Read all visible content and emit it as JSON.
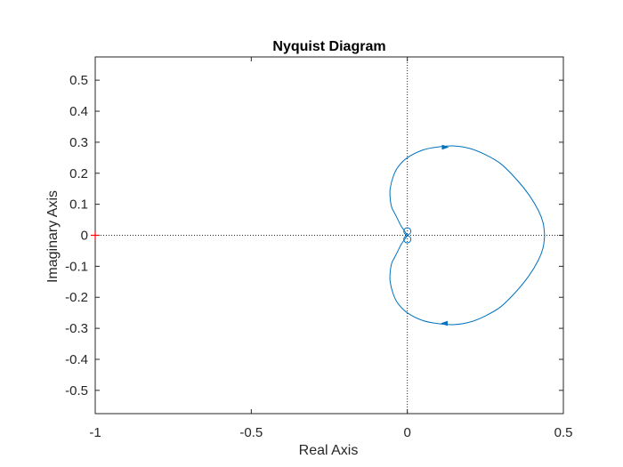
{
  "chart_data": {
    "type": "line",
    "title": "Nyquist Diagram",
    "xlabel": "Real Axis",
    "ylabel": "Imaginary Axis",
    "xlim": [
      -1,
      0.5
    ],
    "ylim": [
      -0.575,
      0.575
    ],
    "xticks": [
      -1,
      -0.5,
      0,
      0.5
    ],
    "xtick_labels": [
      "-1",
      "-0.5",
      "0",
      "0.5"
    ],
    "yticks": [
      -0.5,
      -0.4,
      -0.3,
      -0.2,
      -0.1,
      0,
      0.1,
      0.2,
      0.3,
      0.4,
      0.5
    ],
    "ytick_labels": [
      "-0.5",
      "-0.4",
      "-0.3",
      "-0.2",
      "-0.1",
      "0",
      "0.1",
      "0.2",
      "0.3",
      "0.4",
      "0.5"
    ],
    "grid": false,
    "reference_lines": {
      "x0_dotted": true,
      "y0_dotted": true
    },
    "critical_point": {
      "x": -1,
      "y": 0,
      "marker": "+",
      "color": "#ff0000"
    },
    "series": [
      {
        "color": "#0072bd",
        "x": [
          0.0,
          -0.01,
          -0.02,
          -0.03,
          -0.04,
          -0.05,
          -0.055,
          -0.055,
          -0.045,
          -0.03,
          0.0,
          0.05,
          0.1,
          0.15,
          0.2,
          0.25,
          0.3,
          0.35,
          0.39,
          0.42,
          0.435,
          0.44
        ],
        "y": [
          0.0,
          0.015,
          0.03,
          0.05,
          0.07,
          0.09,
          0.12,
          0.15,
          0.19,
          0.22,
          0.25,
          0.275,
          0.285,
          0.288,
          0.28,
          0.26,
          0.23,
          0.18,
          0.13,
          0.08,
          0.04,
          0.0
        ]
      },
      {
        "color": "#0072bd",
        "x": [
          0.44,
          0.435,
          0.42,
          0.39,
          0.35,
          0.3,
          0.25,
          0.2,
          0.15,
          0.1,
          0.05,
          0.0,
          -0.03,
          -0.045,
          -0.055,
          -0.055,
          -0.05,
          -0.04,
          -0.03,
          -0.02,
          -0.01,
          0.0
        ],
        "y": [
          0.0,
          -0.04,
          -0.08,
          -0.13,
          -0.18,
          -0.23,
          -0.26,
          -0.28,
          -0.288,
          -0.285,
          -0.275,
          -0.25,
          -0.22,
          -0.19,
          -0.15,
          -0.12,
          -0.09,
          -0.07,
          -0.05,
          -0.03,
          -0.015,
          0.0
        ]
      }
    ],
    "loops": [
      {
        "cx": 0.0,
        "cy": 0.013,
        "r": 0.012
      },
      {
        "cx": 0.0,
        "cy": -0.013,
        "r": 0.012
      }
    ],
    "arrows": [
      {
        "x": 0.12,
        "y": 0.284,
        "dir": "right"
      },
      {
        "x": 0.12,
        "y": -0.284,
        "dir": "left"
      }
    ]
  }
}
